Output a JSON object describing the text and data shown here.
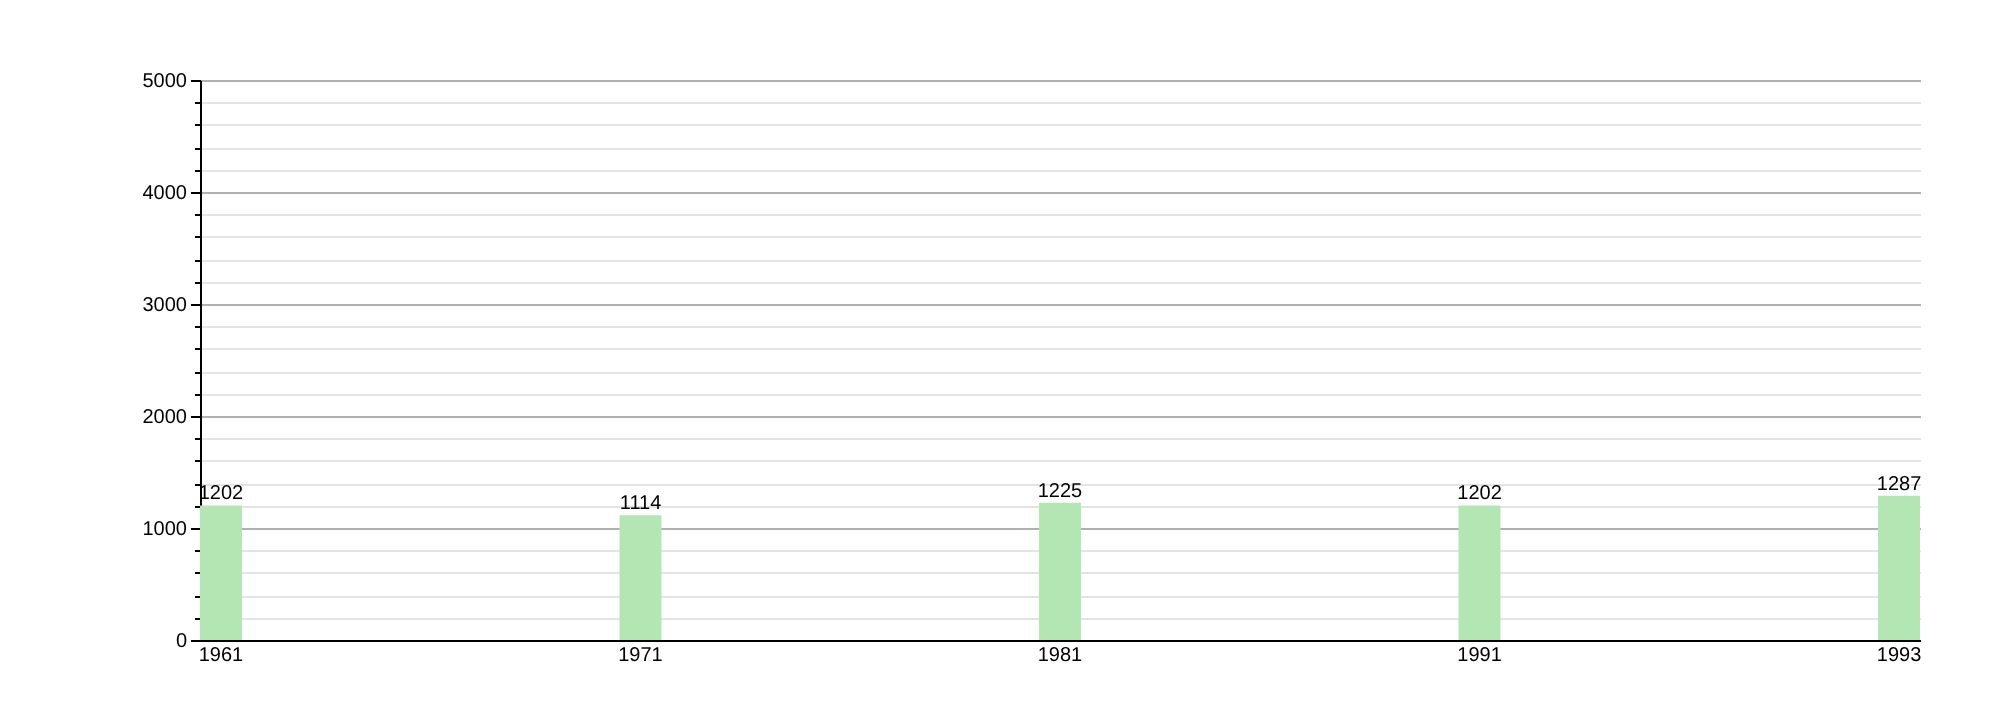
{
  "chart_data": {
    "type": "bar",
    "categories": [
      "1961",
      "1971",
      "1981",
      "1991",
      "1993"
    ],
    "values": [
      1202,
      1114,
      1225,
      1202,
      1287
    ],
    "color": "#b3e6b3",
    "ylim": [
      0,
      5000
    ],
    "yticks": [
      0,
      {
        "value": 200,
        "label": null
      },
      {
        "value": 400,
        "label": null
      },
      {
        "value": 600,
        "label": null
      },
      {
        "value": 800,
        "label": null
      },
      1000,
      {
        "value": 1200,
        "label": null
      },
      {
        "value": 1400,
        "label": null
      },
      {
        "value": 1600,
        "label": null
      },
      {
        "value": 1800,
        "label": null
      },
      2000,
      {
        "value": 2200,
        "label": null
      },
      {
        "value": 2400,
        "label": null
      },
      {
        "value": 2600,
        "label": null
      },
      {
        "value": 2800,
        "label": null
      },
      3000,
      {
        "value": 3200,
        "label": null
      },
      {
        "value": 3400,
        "label": null
      },
      {
        "value": 3600,
        "label": null
      },
      {
        "value": 3800,
        "label": null
      },
      4000,
      {
        "value": 4200,
        "label": null
      },
      {
        "value": 4400,
        "label": null
      },
      {
        "value": 4600,
        "label": null
      },
      {
        "value": 4800,
        "label": null
      },
      5000
    ],
    "grid": "y",
    "data_labels": true
  }
}
